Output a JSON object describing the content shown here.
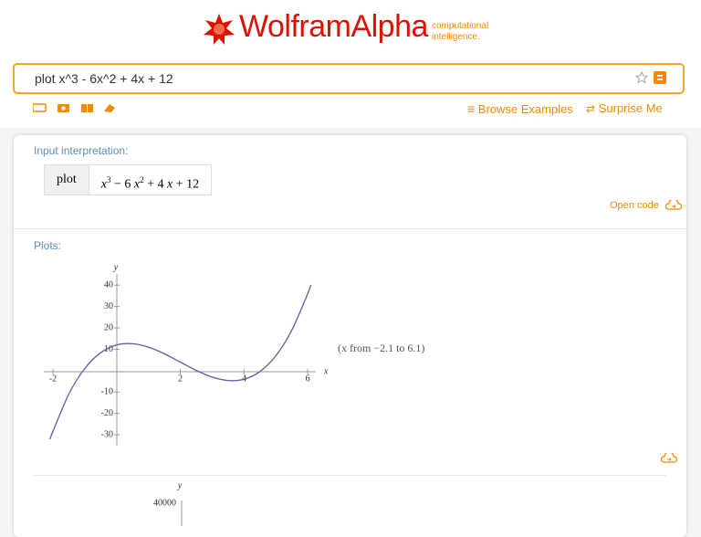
{
  "header": {
    "brand": "WolframAlpha",
    "tagline": [
      "computational",
      "intelligence."
    ]
  },
  "search": {
    "query": "plot x^3 - 6x^2 + 4x + 12"
  },
  "nav": {
    "browse": "Browse Examples",
    "surprise": "Surprise Me"
  },
  "pods": {
    "input": {
      "title": "Input interpretation:",
      "keyword": "plot",
      "formula": [
        "x",
        "3",
        " − 6 ",
        "x",
        "2",
        " + 4 ",
        "x",
        " + 12"
      ],
      "open_code": "Open code"
    },
    "plots": {
      "title": "Plots:",
      "range_note": "(x from −2.1 to 6.1)",
      "second_plot": {
        "ylabel": "y",
        "tick": "40000"
      }
    }
  },
  "chart_data": {
    "type": "line",
    "xlabel": "x",
    "ylabel": "y",
    "color": "#5b5ea6",
    "x": [
      -2.1,
      -1.5,
      -1,
      -0.5,
      0,
      0.5,
      1,
      1.5,
      2,
      2.5,
      3,
      3.5,
      4,
      4.5,
      5,
      5.5,
      6,
      6.1
    ],
    "values": [
      -32.1,
      -10.9,
      1,
      8.4,
      12,
      12.6,
      11,
      7.9,
      4,
      0.1,
      -3,
      -4.6,
      -4,
      -0.4,
      7,
      18.9,
      36,
      40.1
    ],
    "xlim": [
      -2.1,
      6.1
    ],
    "ylim": [
      -32.1,
      40.1
    ],
    "xticks": [
      -2,
      2,
      4,
      6
    ],
    "yticks": [
      -30,
      -20,
      -10,
      10,
      20,
      30,
      40
    ]
  }
}
